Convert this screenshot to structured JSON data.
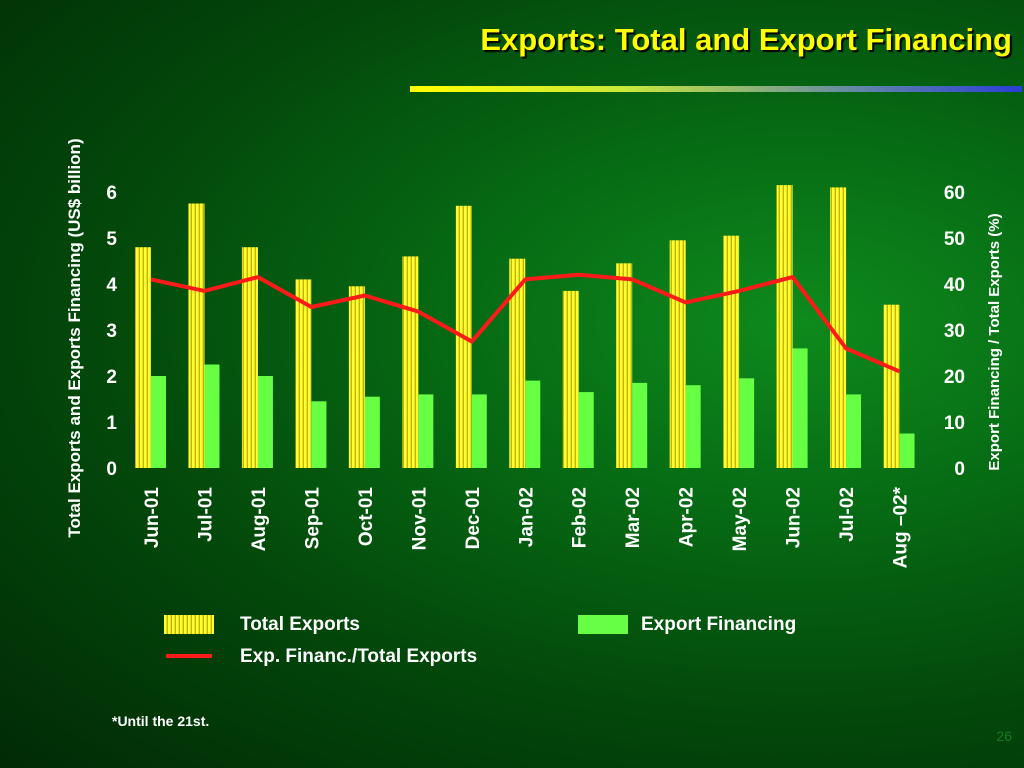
{
  "slide": {
    "title": "Exports: Total and Export Financing",
    "footnote": "*Until the 21st.",
    "page_number": "26"
  },
  "colors": {
    "total_exports_bar": "#ffff33",
    "total_exports_stripe": "#c8b400",
    "export_financing_bar": "#66ff44",
    "ratio_line": "#ff1a1a",
    "title": "#ffff00"
  },
  "chart_data": {
    "type": "bar",
    "title": "",
    "categories": [
      "Jun-01",
      "Jul-01",
      "Aug-01",
      "Sep-01",
      "Oct-01",
      "Nov-01",
      "Dec-01",
      "Jan-02",
      "Feb-02",
      "Mar-02",
      "Apr-02",
      "May-02",
      "Jun-02",
      "Jul-02",
      "Aug –02*"
    ],
    "series": [
      {
        "name": "Total Exports",
        "type": "bar",
        "axis": "left",
        "values": [
          4.8,
          5.75,
          4.8,
          4.1,
          3.95,
          4.6,
          5.7,
          4.55,
          3.85,
          4.45,
          4.95,
          5.05,
          6.15,
          6.1,
          3.55
        ]
      },
      {
        "name": "Export Financing",
        "type": "bar",
        "axis": "left",
        "values": [
          2.0,
          2.25,
          2.0,
          1.45,
          1.55,
          1.6,
          1.6,
          1.9,
          1.65,
          1.85,
          1.8,
          1.95,
          2.6,
          1.6,
          0.75
        ]
      },
      {
        "name": "Exp. Financ./Total Exports",
        "type": "line",
        "axis": "right",
        "values": [
          41,
          38.5,
          41.5,
          35,
          37.5,
          34,
          27.5,
          41,
          42,
          41,
          36,
          38.5,
          41.5,
          26,
          21
        ]
      }
    ],
    "ylabel": "Total Exports and  Exports Financing (US$ billion)",
    "y2label": "Export Financing / Total Exports  (%)",
    "ylim": [
      0,
      6
    ],
    "y2lim": [
      0,
      60
    ],
    "yticks": [
      "0",
      "1",
      "2",
      "3",
      "4",
      "5",
      "6"
    ],
    "y2ticks": [
      "0",
      "10",
      "20",
      "30",
      "40",
      "50",
      "60"
    ],
    "grid": false,
    "legend_position": "bottom",
    "legend": [
      {
        "label": "Total Exports",
        "kind": "bar-striped"
      },
      {
        "label": "Export Financing",
        "kind": "bar-solid"
      },
      {
        "label": "Exp. Financ./Total Exports",
        "kind": "line"
      }
    ]
  }
}
